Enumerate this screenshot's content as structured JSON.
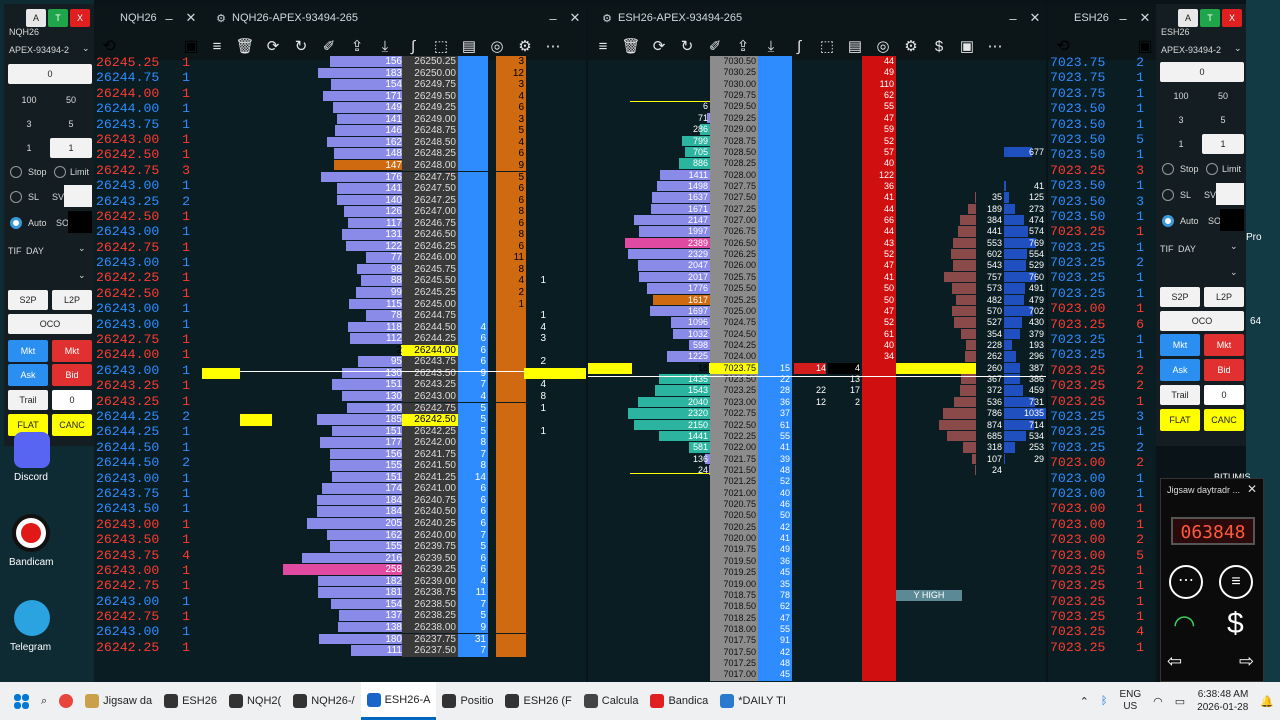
{
  "left_tape": {
    "title": "NQH26",
    "rows": [
      [
        "26245.25",
        "1",
        "r"
      ],
      [
        "26244.75",
        "1",
        "b"
      ],
      [
        "26244.00",
        "1",
        "r"
      ],
      [
        "26244.00",
        "1",
        "b"
      ],
      [
        "26243.75",
        "1",
        "b"
      ],
      [
        "26243.00",
        "1",
        "r"
      ],
      [
        "26242.50",
        "1",
        "r"
      ],
      [
        "26242.75",
        "3",
        "r"
      ],
      [
        "26243.00",
        "1",
        "b"
      ],
      [
        "26243.25",
        "2",
        "b"
      ],
      [
        "26242.50",
        "1",
        "r"
      ],
      [
        "26243.00",
        "1",
        "b"
      ],
      [
        "26242.75",
        "1",
        "r"
      ],
      [
        "26243.00",
        "1",
        "b"
      ],
      [
        "26242.25",
        "1",
        "r"
      ],
      [
        "26242.50",
        "1",
        "r"
      ],
      [
        "26243.00",
        "1",
        "b"
      ],
      [
        "26243.00",
        "1",
        "b"
      ],
      [
        "26242.75",
        "1",
        "r"
      ],
      [
        "26244.00",
        "1",
        "r"
      ],
      [
        "26243.00",
        "1",
        "b"
      ],
      [
        "26243.25",
        "1",
        "r"
      ],
      [
        "26243.25",
        "1",
        "r"
      ],
      [
        "26244.25",
        "2",
        "b"
      ],
      [
        "26244.25",
        "1",
        "b"
      ],
      [
        "26244.50",
        "1",
        "b"
      ],
      [
        "26244.50",
        "2",
        "b"
      ],
      [
        "26243.00",
        "1",
        "b"
      ],
      [
        "26243.75",
        "1",
        "b"
      ],
      [
        "26243.50",
        "1",
        "b"
      ],
      [
        "26243.00",
        "1",
        "r"
      ],
      [
        "26243.50",
        "1",
        "r"
      ],
      [
        "26243.75",
        "4",
        "r"
      ],
      [
        "26243.00",
        "1",
        "r"
      ],
      [
        "26242.75",
        "1",
        "r"
      ],
      [
        "26243.00",
        "1",
        "b"
      ],
      [
        "26242.75",
        "1",
        "r"
      ],
      [
        "26243.00",
        "1",
        "b"
      ],
      [
        "26242.25",
        "1",
        "r"
      ]
    ]
  },
  "right_tape": {
    "title": "ESH26",
    "rows": [
      [
        "7023.75",
        "2",
        "b"
      ],
      [
        "7023.75",
        "1",
        "b"
      ],
      [
        "7023.75",
        "1",
        "b"
      ],
      [
        "7023.50",
        "1",
        "b"
      ],
      [
        "7023.50",
        "1",
        "b"
      ],
      [
        "7023.50",
        "5",
        "b"
      ],
      [
        "7023.50",
        "1",
        "b"
      ],
      [
        "7023.25",
        "3",
        "r"
      ],
      [
        "7023.50",
        "1",
        "b"
      ],
      [
        "7023.50",
        "3",
        "b"
      ],
      [
        "7023.50",
        "1",
        "b"
      ],
      [
        "7023.25",
        "1",
        "r"
      ],
      [
        "7023.25",
        "1",
        "b"
      ],
      [
        "7023.25",
        "2",
        "b"
      ],
      [
        "7023.25",
        "1",
        "b"
      ],
      [
        "7023.25",
        "1",
        "b"
      ],
      [
        "7023.00",
        "1",
        "r"
      ],
      [
        "7023.25",
        "6",
        "r"
      ],
      [
        "7023.25",
        "1",
        "b"
      ],
      [
        "7023.25",
        "1",
        "b"
      ],
      [
        "7023.25",
        "2",
        "r"
      ],
      [
        "7023.25",
        "2",
        "r"
      ],
      [
        "7023.25",
        "1",
        "r"
      ],
      [
        "7023.25",
        "3",
        "b"
      ],
      [
        "7023.25",
        "1",
        "b"
      ],
      [
        "7023.25",
        "2",
        "b"
      ],
      [
        "7023.00",
        "2",
        "r"
      ],
      [
        "7023.00",
        "1",
        "b"
      ],
      [
        "7023.00",
        "1",
        "b"
      ],
      [
        "7023.00",
        "1",
        "r"
      ],
      [
        "7023.00",
        "1",
        "r"
      ],
      [
        "7023.00",
        "2",
        "r"
      ],
      [
        "7023.00",
        "5",
        "r"
      ],
      [
        "7023.25",
        "1",
        "r"
      ],
      [
        "7023.25",
        "1",
        "r"
      ],
      [
        "7023.25",
        "1",
        "r"
      ],
      [
        "7023.25",
        "1",
        "r"
      ],
      [
        "7023.25",
        "4",
        "r"
      ],
      [
        "7023.25",
        "1",
        "r"
      ]
    ]
  },
  "nq_ladder": {
    "title": "NQH26-APEX-93494-265",
    "prices": [
      "26250.25",
      "26250.00",
      "26249.75",
      "26249.50",
      "26249.25",
      "26249.00",
      "26248.75",
      "26248.50",
      "26248.25",
      "26248.00",
      "26247.75",
      "26247.50",
      "26247.25",
      "26247.00",
      "26246.75",
      "26246.50",
      "26246.25",
      "26246.00",
      "26245.75",
      "26245.50",
      "26245.25",
      "26245.00",
      "26244.75",
      "26244.50",
      "26244.25",
      "26244.00",
      "26243.75",
      "26243.50",
      "26243.25",
      "26243.00",
      "26242.75",
      "26242.50",
      "26242.25",
      "26242.00",
      "26241.75",
      "26241.50",
      "26241.25",
      "26241.00",
      "26240.75",
      "26240.50",
      "26240.25",
      "26240.00",
      "26239.75",
      "26239.50",
      "26239.25",
      "26239.00",
      "26238.75",
      "26238.50",
      "26238.25",
      "26238.00",
      "26237.75",
      "26237.50"
    ],
    "vol": [
      "156",
      "183",
      "154",
      "171",
      "149",
      "141",
      "146",
      "162",
      "148",
      "147",
      "176",
      "141",
      "140",
      "126",
      "117",
      "131",
      "122",
      "77",
      "98",
      "88",
      "99",
      "115",
      "78",
      "118",
      "112",
      "2",
      "95",
      "130",
      "151",
      "130",
      "120",
      "185",
      "151",
      "177",
      "156",
      "155",
      "151",
      "174",
      "184",
      "184",
      "205",
      "162",
      "155",
      "216",
      "258",
      "182",
      "181",
      "154",
      "137",
      "138",
      "180",
      "111"
    ],
    "bid": [
      "",
      "",
      "",
      "",
      "",
      "",
      "",
      "",
      "",
      "",
      "",
      "",
      "",
      "",
      "",
      "",
      "",
      "",
      "",
      "",
      "",
      "",
      "",
      "4",
      "6",
      "6",
      "6",
      "9",
      "7",
      "4",
      "5",
      "5",
      "5",
      "8",
      "7",
      "8",
      "14",
      "6",
      "6",
      "6",
      "6",
      "7",
      "5",
      "6",
      "6",
      "4",
      "11",
      "7",
      "5",
      "9",
      "31",
      "7"
    ],
    "a1": [
      "",
      "",
      "",
      "",
      "",
      "",
      "",
      "",
      "",
      "",
      "",
      "",
      "",
      "",
      "",
      "",
      "",
      "",
      "",
      "",
      "1",
      "",
      "",
      "",
      "",
      "1",
      "5",
      "1",
      "2",
      "5",
      "8",
      "6",
      "2",
      "",
      "",
      "",
      "",
      "",
      "",
      "",
      "",
      "",
      "",
      "",
      "",
      "",
      "",
      "",
      "",
      "",
      "",
      ""
    ],
    "a2": [
      "",
      "",
      "",
      "",
      "",
      "",
      "",
      "",
      "",
      "",
      "",
      "",
      "",
      "",
      "",
      "",
      "",
      "",
      "",
      "1",
      "",
      "",
      "1",
      "4",
      "3",
      "",
      "2",
      "2",
      "4",
      "8",
      "1",
      "",
      "1",
      "",
      "",
      "",
      "",
      "",
      "",
      "",
      "",
      "",
      "",
      "",
      "",
      "",
      "",
      "",
      "",
      "",
      "",
      ""
    ],
    "ask": [
      "3",
      "12",
      "3",
      "4",
      "6",
      "3",
      "5",
      "4",
      "6",
      "9",
      "5",
      "6",
      "6",
      "8",
      "6",
      "8",
      "6",
      "11",
      "8",
      "4",
      "2",
      "1",
      "",
      "",
      "",
      "",
      "",
      "",
      "",
      "",
      "",
      "",
      "",
      "",
      "",
      "",
      "",
      "",
      "",
      "",
      "",
      "",
      "",
      "",
      "",
      "",
      "",
      "",
      "",
      "",
      "",
      ""
    ]
  },
  "es_ladder": {
    "title": "ESH26-APEX-93494-265",
    "prices": [
      "7030.50",
      "7030.25",
      "7030.00",
      "7029.75",
      "7029.50",
      "7029.25",
      "7029.00",
      "7028.75",
      "7028.50",
      "7028.25",
      "7028.00",
      "7027.75",
      "7027.50",
      "7027.25",
      "7027.00",
      "7026.75",
      "7026.50",
      "7026.25",
      "7026.00",
      "7025.75",
      "7025.50",
      "7025.25",
      "7025.00",
      "7024.75",
      "7024.50",
      "7024.25",
      "7024.00",
      "7023.75",
      "7023.50",
      "7023.25",
      "7023.00",
      "7022.75",
      "7022.50",
      "7022.25",
      "7022.00",
      "7021.75",
      "7021.50",
      "7021.25",
      "7021.00",
      "7020.75",
      "7020.50",
      "7020.25",
      "7020.00",
      "7019.75",
      "7019.50",
      "7019.25",
      "7019.00",
      "7018.75",
      "7018.50",
      "7018.25",
      "7018.00",
      "7017.75",
      "7017.50",
      "7017.25",
      "7017.00"
    ],
    "vol": [
      "",
      "",
      "",
      "",
      "6",
      "71",
      "286",
      "799",
      "705",
      "886",
      "1411",
      "1498",
      "1637",
      "1671",
      "2147",
      "1997",
      "2389",
      "2329",
      "2047",
      "2017",
      "1776",
      "1617",
      "1697",
      "1096",
      "1032",
      "598",
      "1225",
      "18",
      "1435",
      "1543",
      "2040",
      "2320",
      "2150",
      "1441",
      "581",
      "136",
      "24",
      "",
      "",
      "",
      "",
      "",
      "",
      "",
      "",
      "",
      "",
      "",
      "",
      "",
      "",
      "",
      "",
      "",
      ""
    ],
    "bidsz": [
      "",
      "",
      "",
      "",
      "",
      "",
      "",
      "",
      "",
      "",
      "",
      "",
      "",
      "",
      "",
      "",
      "",
      "",
      "",
      "",
      "",
      "",
      "",
      "",
      "",
      "",
      "",
      "15",
      "22",
      "28",
      "36",
      "37",
      "61",
      "55",
      "41",
      "39",
      "48",
      "52",
      "40",
      "46",
      "50",
      "42",
      "41",
      "49",
      "36",
      "45",
      "35",
      "78",
      "62",
      "47",
      "55",
      "91",
      "42",
      "48",
      "45"
    ],
    "bid2": [
      "",
      "",
      "",
      "",
      "",
      "",
      "",
      "",
      "",
      "",
      "",
      "",
      "",
      "",
      "",
      "",
      "",
      "",
      "",
      "",
      "",
      "",
      "",
      "",
      "",
      "",
      "",
      "14",
      "",
      "22",
      "12",
      "",
      "",
      "",
      "",
      "",
      "",
      "",
      "",
      "",
      "",
      "",
      "",
      "",
      "",
      "",
      "",
      "",
      "",
      "",
      "",
      "",
      "",
      "",
      ""
    ],
    "bid3": [
      "",
      "",
      "",
      "",
      "",
      "",
      "",
      "",
      "",
      "",
      "",
      "",
      "",
      "",
      "",
      "",
      "",
      "",
      "",
      "",
      "",
      "",
      "",
      "",
      "",
      "",
      "",
      "4",
      "13",
      "17",
      "2",
      "",
      "",
      "",
      "",
      "",
      "",
      "",
      "",
      "",
      "",
      "",
      "",
      "",
      "",
      "",
      "",
      "",
      "",
      "",
      "",
      "",
      "",
      "",
      ""
    ],
    "asksz": [
      "44",
      "49",
      "110",
      "62",
      "55",
      "47",
      "59",
      "52",
      "57",
      "40",
      "122",
      "36",
      "41",
      "44",
      "66",
      "44",
      "43",
      "52",
      "47",
      "41",
      "50",
      "50",
      "47",
      "52",
      "61",
      "40",
      "34",
      "",
      "",
      "",
      "",
      "",
      "",
      "",
      "",
      "",
      "",
      "",
      "",
      "",
      "",
      "",
      "",
      "",
      "",
      "",
      "",
      "",
      "",
      "",
      "",
      "",
      "",
      "",
      ""
    ],
    "pv1": [
      "",
      "",
      "",
      "",
      "",
      "",
      "",
      "",
      "",
      "",
      "",
      "",
      "35",
      "189",
      "384",
      "441",
      "553",
      "602",
      "543",
      "757",
      "573",
      "482",
      "570",
      "527",
      "354",
      "228",
      "262",
      "260",
      "367",
      "372",
      "536",
      "786",
      "874",
      "685",
      "318",
      "107",
      "24",
      "",
      "",
      "",
      "",
      "",
      "",
      "",
      "",
      "",
      "",
      "",
      "",
      "",
      "",
      "",
      "",
      "",
      ""
    ],
    "pv2": [
      "",
      "",
      "",
      "",
      "",
      "",
      "",
      "",
      "677",
      "",
      "",
      "41",
      "125",
      "273",
      "474",
      "574",
      "769",
      "554",
      "529",
      "760",
      "491",
      "479",
      "702",
      "430",
      "379",
      "193",
      "296",
      "387",
      "386",
      "459",
      "731",
      "1035",
      "714",
      "534",
      "253",
      "29",
      "",
      "",
      "",
      "",
      "",
      "",
      "",
      "",
      "",
      "",
      "",
      "",
      "",
      "",
      "",
      "",
      "",
      "",
      ""
    ],
    "label_yhigh": "Y HIGH"
  },
  "nq_order_panel": {
    "a": "A",
    "t": "T",
    "x": "X",
    "symbol": "NQH26",
    "account": "APEX-93494-2",
    "qty": "0",
    "q1": "100",
    "q2": "50",
    "q3": "3",
    "q4": "5",
    "q5": "1",
    "q6": "1",
    "stop": "Stop",
    "limit": "Limit",
    "sl": "SL",
    "sv": "SV",
    "auto": "Auto",
    "so": "SO",
    "tif": "TIF",
    "day": "DAY",
    "s2p": "S2P",
    "l2p": "L2P",
    "oco": "OCO",
    "mkt1": "Mkt",
    "mkt2": "Mkt",
    "ask": "Ask",
    "bid": "Bid",
    "trail": "Trail",
    "trail_val": "0",
    "flat": "FLAT",
    "canc": "CANC"
  },
  "es_order_panel": {
    "a": "A",
    "t": "T",
    "x": "X",
    "symbol": "ESH26",
    "account": "APEX-93494-2",
    "qty": "0",
    "q1": "100",
    "q2": "50",
    "q3": "3",
    "q4": "5",
    "q5": "1",
    "q6": "1",
    "stop": "Stop",
    "limit": "Limit",
    "sl": "SL",
    "sv": "SV",
    "auto": "Auto",
    "so": "SO",
    "tif": "TIF",
    "day": "DAY",
    "s2p": "S2P",
    "l2p": "L2P",
    "oco": "OCO",
    "mkt1": "Mkt",
    "mkt2": "Mkt",
    "ask": "Ask",
    "bid": "Bid",
    "trail": "Trail",
    "trail_val": "0",
    "flat": "FLAT",
    "canc": "CANC"
  },
  "desktop": {
    "discord": "Discord",
    "bandicam": "Bandicam",
    "telegram": "Telegram",
    "pro": "Pro",
    "n64": "64",
    "bitumis": "BITUMIS"
  },
  "jigsaw": {
    "title": "Jigsaw daytradr ...",
    "clock": "063848"
  },
  "taskbar": {
    "items": [
      "Jigsaw da",
      "ESH26",
      "NQH2(",
      "NQH26-/",
      "ESH26-A",
      "Positio",
      "ESH26 (F",
      "Calcula",
      "Bandica",
      "*DAILY TI"
    ],
    "lang1": "ENG",
    "lang2": "US",
    "time": "6:38:48 AM",
    "date": "2026-01-28"
  },
  "colors": {
    "bg": "#0a1d22",
    "ask_bar": "#d06a10",
    "bid_bar": "#2f8cff",
    "vol_bar": "#7f7fe6",
    "highlight": "#ffff00",
    "es_ask": "#d01010",
    "es_teal": "#2bb5a0"
  }
}
